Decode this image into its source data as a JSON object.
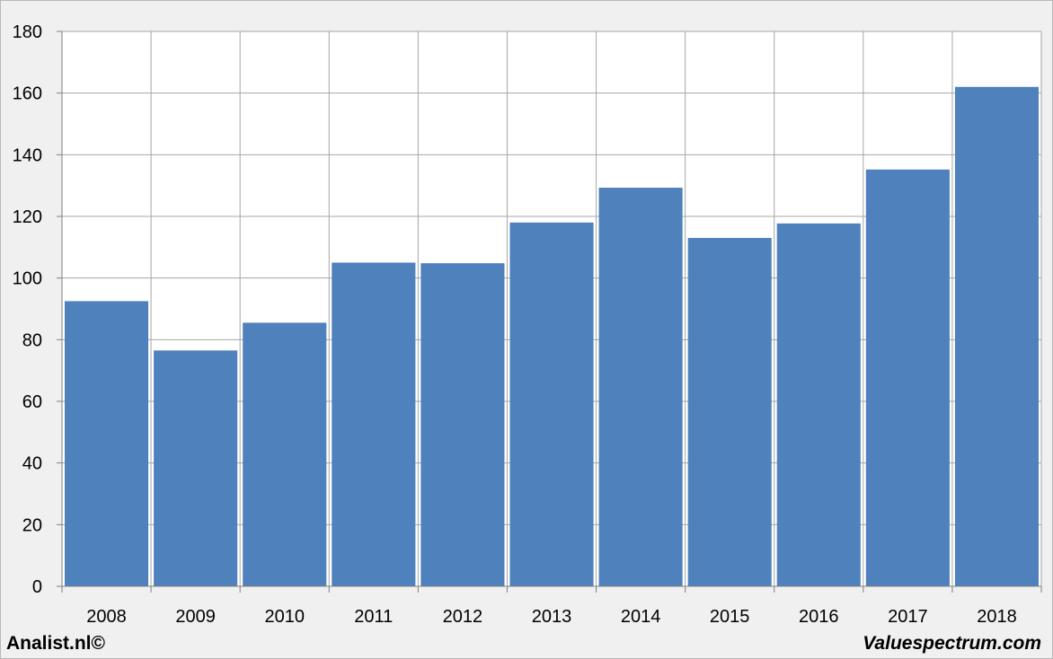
{
  "chart_data": {
    "type": "bar",
    "categories": [
      "2008",
      "2009",
      "2010",
      "2011",
      "2012",
      "2013",
      "2014",
      "2015",
      "2016",
      "2017",
      "2018"
    ],
    "values": [
      92.5,
      76.5,
      85.5,
      105.0,
      104.8,
      118.0,
      129.3,
      113.0,
      117.7,
      135.2,
      162.0
    ],
    "ylim": [
      0,
      180
    ],
    "yticks": [
      0,
      20,
      40,
      60,
      80,
      100,
      120,
      140,
      160,
      180
    ],
    "grid": true,
    "bar_color": "#4f81bd",
    "grid_color": "#a6a6a6",
    "plot_background": "#ffffff"
  },
  "footer": {
    "left": "Analist.nl©",
    "right": "Valuespectrum.com"
  }
}
